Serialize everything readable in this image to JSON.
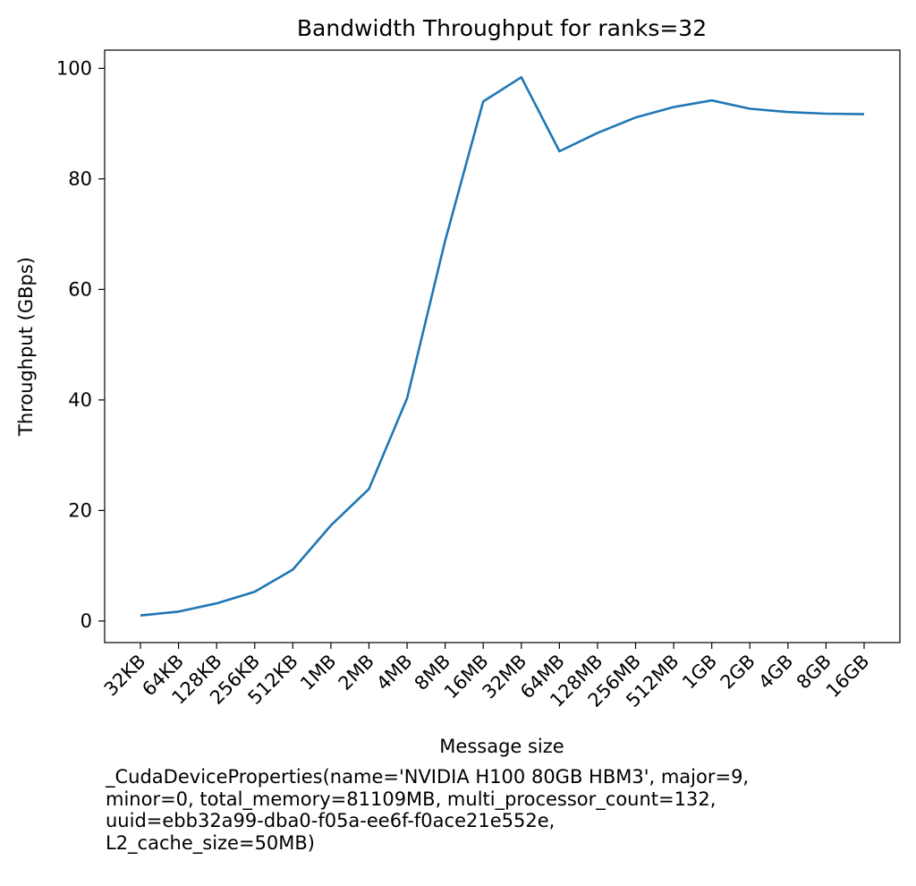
{
  "chart_data": {
    "type": "line",
    "title": "Bandwidth Throughput for ranks=32",
    "xlabel": "Message size",
    "ylabel": "Throughput (GBps)",
    "categories": [
      "32KB",
      "64KB",
      "128KB",
      "256KB",
      "512KB",
      "1MB",
      "2MB",
      "4MB",
      "8MB",
      "16MB",
      "32MB",
      "64MB",
      "128MB",
      "256MB",
      "512MB",
      "1GB",
      "2GB",
      "4GB",
      "8GB",
      "16GB"
    ],
    "series": [
      {
        "values": [
          1.0,
          1.7,
          3.2,
          5.3,
          9.3,
          17.3,
          23.9,
          40.3,
          68.8,
          94.0,
          98.4,
          85.0,
          88.3,
          91.1,
          93.0,
          94.2,
          92.7,
          92.1,
          91.8,
          91.7
        ]
      }
    ],
    "ylim": [
      -3.9,
      103.3
    ],
    "yticks": [
      0,
      20,
      40,
      60,
      80,
      100
    ],
    "grid": false,
    "line_color": "#1f77b4"
  },
  "caption": "_CudaDeviceProperties(name='NVIDIA H100 80GB HBM3', major=9,\nminor=0, total_memory=81109MB, multi_processor_count=132,\nuuid=ebb32a99-dba0-f05a-ee6f-f0ace21e552e,\nL2_cache_size=50MB)"
}
